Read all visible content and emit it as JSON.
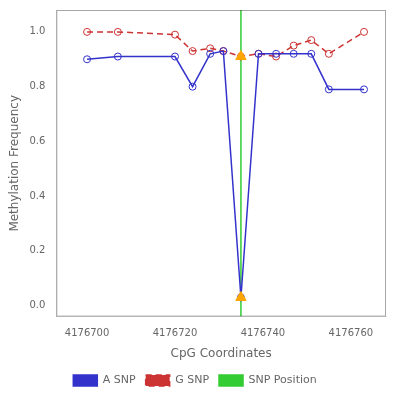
{
  "chart_data": {
    "type": "line",
    "xlabel": "CpG Coordinates",
    "ylabel": "Methylation Frequency",
    "x": [
      4176700,
      4176707,
      4176720,
      4176724,
      4176728,
      4176731,
      4176735,
      4176739,
      4176743,
      4176747,
      4176751,
      4176755,
      4176763
    ],
    "series": [
      {
        "name": "A SNP",
        "color": "#3333cc",
        "line_style": "solid",
        "marker": "circle",
        "values": [
          0.9,
          0.91,
          0.91,
          0.8,
          0.92,
          0.93,
          0.03,
          0.92,
          0.92,
          0.92,
          0.92,
          0.79,
          0.79
        ]
      },
      {
        "name": "G SNP",
        "color": "#cc3333",
        "line_style": "dashed",
        "marker": "circle",
        "values": [
          1.0,
          1.0,
          0.99,
          0.93,
          0.94,
          0.93,
          0.91,
          0.92,
          0.91,
          0.95,
          0.97,
          0.92,
          1.0
        ]
      }
    ],
    "vlines": [
      {
        "name": "SNP Position",
        "x": 4176735,
        "color": "#33cc33"
      }
    ],
    "markers": {
      "x": [
        4176735,
        4176735
      ],
      "values": [
        0.91,
        0.03
      ],
      "color": "#FFA500",
      "marker": "triangle"
    },
    "xlim": [
      4176693,
      4176768
    ],
    "ylim": [
      -0.04,
      1.08
    ],
    "xticks": [
      4176700,
      4176720,
      4176740,
      4176760
    ],
    "yticks": [
      {
        "value": 0,
        "label": "0.0"
      },
      0.2,
      0.4,
      0.6,
      0.8,
      {
        "value": 1,
        "label": "1.0"
      }
    ],
    "grid": false,
    "legend": "bottom"
  }
}
